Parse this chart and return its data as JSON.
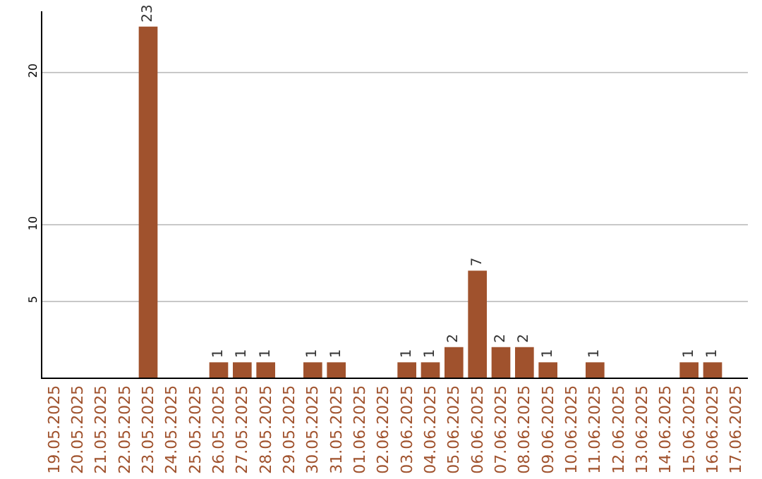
{
  "chart_data": {
    "type": "bar",
    "categories": [
      "19.05.2025",
      "20.05.2025",
      "21.05.2025",
      "22.05.2025",
      "23.05.2025",
      "24.05.2025",
      "25.05.2025",
      "26.05.2025",
      "27.05.2025",
      "28.05.2025",
      "29.05.2025",
      "30.05.2025",
      "31.05.2025",
      "01.06.2025",
      "02.06.2025",
      "03.06.2025",
      "04.06.2025",
      "05.06.2025",
      "06.06.2025",
      "07.06.2025",
      "08.06.2025",
      "09.06.2025",
      "10.06.2025",
      "11.06.2025",
      "12.06.2025",
      "13.06.2025",
      "14.06.2025",
      "15.06.2025",
      "16.06.2025",
      "17.06.2025"
    ],
    "values": [
      0,
      0,
      0,
      0,
      23,
      0,
      0,
      1,
      1,
      1,
      0,
      1,
      1,
      0,
      0,
      1,
      1,
      2,
      7,
      2,
      2,
      1,
      0,
      1,
      0,
      0,
      0,
      1,
      1,
      0
    ],
    "value_labels": [
      null,
      null,
      null,
      null,
      "23",
      null,
      null,
      "1",
      "1",
      "1",
      null,
      "1",
      "1",
      null,
      null,
      "1",
      "1",
      "2",
      "7",
      "2",
      "2",
      "1",
      null,
      "1",
      null,
      null,
      null,
      "1",
      "1",
      null
    ],
    "color": "#a0522d",
    "ylim": [
      0,
      24
    ],
    "yticks": [
      5,
      10,
      20
    ],
    "grid": "y"
  }
}
